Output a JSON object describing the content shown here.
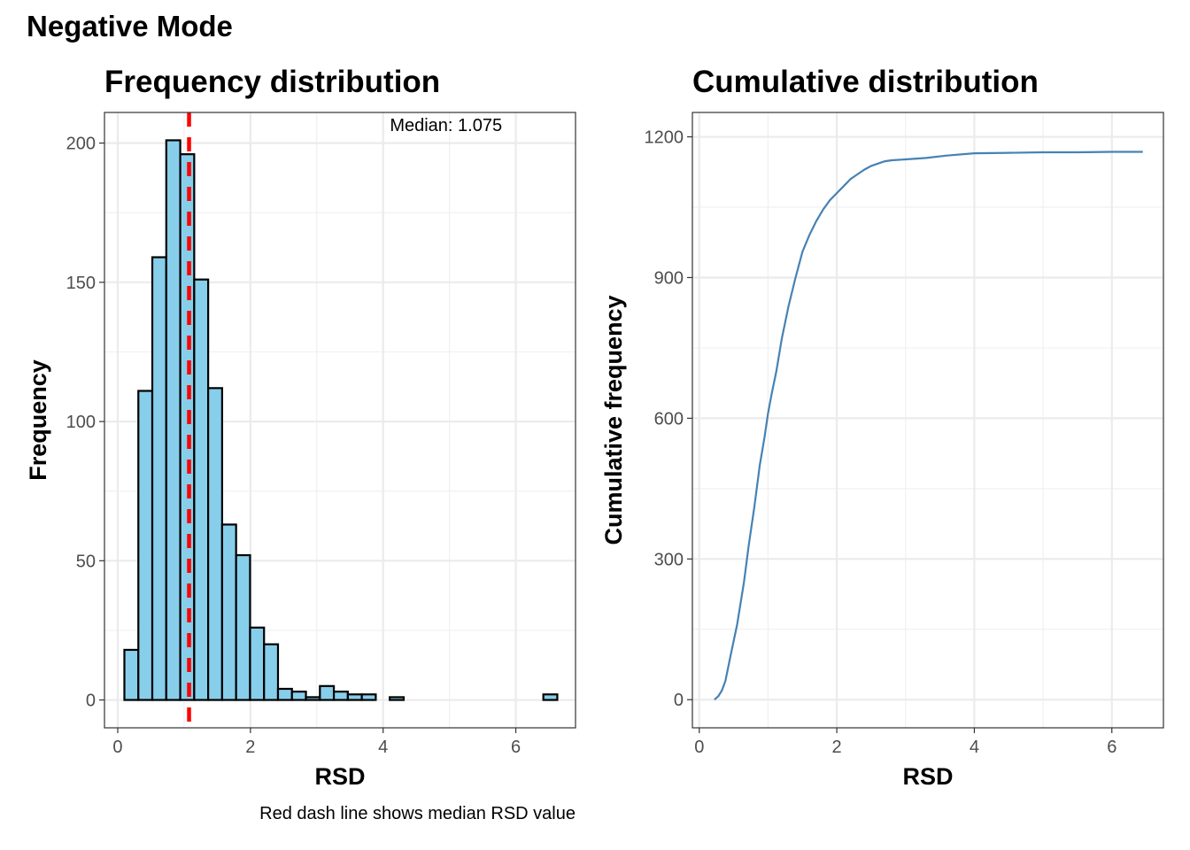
{
  "page": {
    "title": "Negative Mode"
  },
  "chart_data": [
    {
      "type": "bar",
      "title": "Frequency distribution",
      "xlabel": "RSD",
      "ylabel": "Frequency",
      "annotation": "Median: 1.075",
      "caption": "Red dash line shows median RSD value",
      "median": 1.075,
      "bin_width": 0.2105,
      "bin_start": 0.1,
      "values": [
        18,
        111,
        159,
        201,
        196,
        151,
        112,
        63,
        52,
        26,
        20,
        4,
        3,
        1,
        5,
        3,
        2,
        2,
        0,
        1,
        0,
        0,
        0,
        0,
        0,
        0,
        0,
        0,
        0,
        0,
        2
      ],
      "xlim": [
        -0.2,
        6.9
      ],
      "ylim": [
        -10,
        211
      ],
      "xticks": [
        "0",
        "2",
        "4",
        "6"
      ],
      "yticks": [
        "0",
        "50",
        "100",
        "150",
        "200"
      ],
      "xtick_values": [
        0,
        2,
        4,
        6
      ],
      "ytick_values": [
        0,
        50,
        100,
        150,
        200
      ],
      "colors": {
        "bar_fill": "#87ceeb",
        "bar_stroke": "#000000",
        "median_line": "#ff0000"
      },
      "grid": true
    },
    {
      "type": "line",
      "title": "Cumulative distribution",
      "xlabel": "RSD",
      "ylabel": "Cumulative frequency",
      "x": [
        0.22,
        0.28,
        0.33,
        0.38,
        0.45,
        0.55,
        0.65,
        0.72,
        0.8,
        0.88,
        0.95,
        1.0,
        1.05,
        1.12,
        1.2,
        1.3,
        1.4,
        1.5,
        1.6,
        1.7,
        1.8,
        1.9,
        2.0,
        2.1,
        2.2,
        2.3,
        2.4,
        2.5,
        2.6,
        2.7,
        2.8,
        3.0,
        3.3,
        3.6,
        4.0,
        4.5,
        5.0,
        5.5,
        6.0,
        6.45
      ],
      "y": [
        0,
        8,
        20,
        40,
        90,
        160,
        250,
        330,
        410,
        500,
        560,
        610,
        650,
        700,
        770,
        840,
        900,
        955,
        990,
        1020,
        1045,
        1065,
        1080,
        1095,
        1110,
        1120,
        1130,
        1138,
        1143,
        1148,
        1150,
        1152,
        1155,
        1160,
        1165,
        1166,
        1167,
        1167,
        1168,
        1168
      ],
      "xlim": [
        -0.1,
        6.75
      ],
      "ylim": [
        -60,
        1252
      ],
      "xticks": [
        "0",
        "2",
        "4",
        "6"
      ],
      "yticks": [
        "0",
        "300",
        "600",
        "900",
        "1200"
      ],
      "xtick_values": [
        0,
        2,
        4,
        6
      ],
      "ytick_values": [
        0,
        300,
        600,
        900,
        1200
      ],
      "colors": {
        "line": "#4682b4"
      },
      "grid": true
    }
  ]
}
